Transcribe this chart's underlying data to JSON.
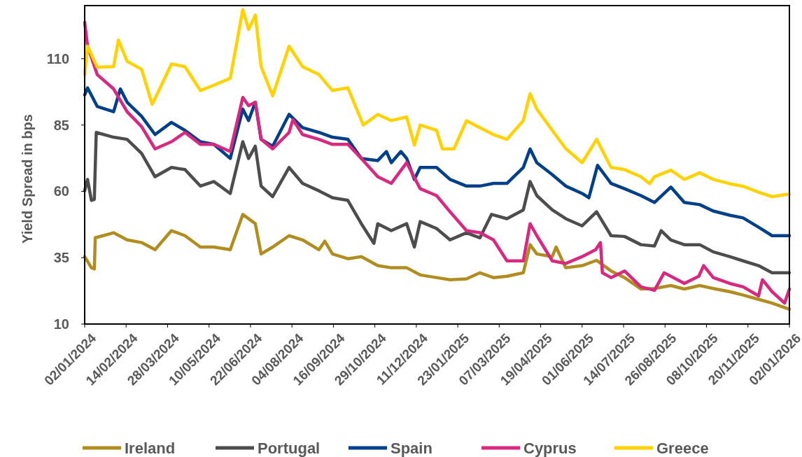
{
  "chart_data": {
    "type": "line",
    "ylabel": "Yield Spread in bps",
    "ylim": [
      10,
      130
    ],
    "yticks": [
      10,
      35,
      60,
      85,
      110
    ],
    "xlim": [
      "2024-01-02",
      "2026-01-02"
    ],
    "xticks": [
      {
        "value": "2024-01-02",
        "label": "02/01/2024"
      },
      {
        "value": "2024-02-14",
        "label": "14/02/2024"
      },
      {
        "value": "2024-03-28",
        "label": "28/03/2024"
      },
      {
        "value": "2024-05-10",
        "label": "10/05/2024"
      },
      {
        "value": "2024-06-22",
        "label": "22/06/2024"
      },
      {
        "value": "2024-08-04",
        "label": "04/08/2024"
      },
      {
        "value": "2024-09-16",
        "label": "16/09/2024"
      },
      {
        "value": "2024-10-29",
        "label": "29/10/2024"
      },
      {
        "value": "2024-12-11",
        "label": "11/12/2024"
      },
      {
        "value": "2025-01-23",
        "label": "23/01/2025"
      },
      {
        "value": "2025-03-07",
        "label": "07/03/2025"
      },
      {
        "value": "2025-04-19",
        "label": "19/04/2025"
      },
      {
        "value": "2025-06-01",
        "label": "01/06/2025"
      },
      {
        "value": "2025-07-14",
        "label": "14/07/2025"
      },
      {
        "value": "2025-08-26",
        "label": "26/08/2025"
      },
      {
        "value": "2025-10-08",
        "label": "08/10/2025"
      },
      {
        "value": "2025-11-20",
        "label": "20/11/2025"
      },
      {
        "value": "2026-01-02",
        "label": "02/01/2026"
      }
    ],
    "grid": false,
    "legend": "bottom",
    "marker": "none",
    "line_style": "solid",
    "series": [
      {
        "name": "Ireland",
        "color": "#b08d1e",
        "x": [
          "2024-01-02",
          "2024-01-09",
          "2024-01-12",
          "2024-01-13",
          "2024-02-01",
          "2024-02-15",
          "2024-03-01",
          "2024-03-15",
          "2024-04-01",
          "2024-04-15",
          "2024-05-01",
          "2024-05-15",
          "2024-06-01",
          "2024-06-14",
          "2024-06-27",
          "2024-07-03",
          "2024-07-15",
          "2024-08-01",
          "2024-08-15",
          "2024-09-01",
          "2024-09-07",
          "2024-09-15",
          "2024-10-01",
          "2024-10-15",
          "2024-11-01",
          "2024-11-15",
          "2024-12-01",
          "2024-12-15",
          "2025-01-01",
          "2025-01-15",
          "2025-02-01",
          "2025-02-15",
          "2025-03-01",
          "2025-03-15",
          "2025-04-01",
          "2025-04-08",
          "2025-04-15",
          "2025-05-01",
          "2025-05-05",
          "2025-05-15",
          "2025-06-01",
          "2025-06-16",
          "2025-07-01",
          "2025-07-15",
          "2025-08-01",
          "2025-08-15",
          "2025-09-01",
          "2025-09-15",
          "2025-10-01",
          "2025-10-15",
          "2025-11-01",
          "2025-11-15",
          "2025-12-01",
          "2025-12-15",
          "2026-01-02"
        ],
        "values": [
          35.4,
          31.2,
          30.8,
          42.5,
          44.4,
          41.7,
          40.7,
          38,
          45.2,
          43.3,
          39,
          39,
          38,
          51.3,
          47.8,
          36.4,
          39,
          43.3,
          41.7,
          38,
          41.2,
          36.4,
          34.6,
          35.4,
          32,
          31.2,
          31.2,
          28.5,
          27.5,
          26.7,
          27,
          29.3,
          27.5,
          28,
          29.3,
          39.9,
          36.4,
          35.4,
          39,
          31.2,
          32,
          34,
          30,
          27.5,
          23.2,
          23.4,
          24.5,
          23.2,
          24.5,
          23.4,
          22.2,
          20.9,
          19.3,
          17.9,
          15.6
        ]
      },
      {
        "name": "Portugal",
        "color": "#4d4d4d",
        "x": [
          "2024-01-02",
          "2024-01-05",
          "2024-01-09",
          "2024-01-12",
          "2024-01-14",
          "2024-02-01",
          "2024-02-15",
          "2024-03-01",
          "2024-03-15",
          "2024-04-01",
          "2024-04-15",
          "2024-05-01",
          "2024-05-15",
          "2024-06-01",
          "2024-06-14",
          "2024-06-20",
          "2024-06-27",
          "2024-07-03",
          "2024-07-15",
          "2024-08-01",
          "2024-08-15",
          "2024-09-01",
          "2024-09-15",
          "2024-10-01",
          "2024-10-15",
          "2024-10-28",
          "2024-11-01",
          "2024-11-15",
          "2024-12-01",
          "2024-12-09",
          "2024-12-15",
          "2025-01-01",
          "2025-01-15",
          "2025-02-01",
          "2025-02-15",
          "2025-02-27",
          "2025-03-15",
          "2025-04-01",
          "2025-04-08",
          "2025-04-15",
          "2025-05-01",
          "2025-05-15",
          "2025-06-01",
          "2025-06-16",
          "2025-07-01",
          "2025-07-15",
          "2025-08-01",
          "2025-08-15",
          "2025-08-22",
          "2025-09-01",
          "2025-09-15",
          "2025-10-01",
          "2025-10-15",
          "2025-11-01",
          "2025-11-15",
          "2025-12-01",
          "2025-12-15",
          "2026-01-02"
        ],
        "values": [
          60.2,
          64.5,
          56.6,
          57,
          82.2,
          80.4,
          79.6,
          74.3,
          65.5,
          69,
          68.2,
          62,
          63.7,
          59.2,
          78.7,
          72.4,
          77,
          62,
          58,
          69,
          63,
          60.2,
          57.6,
          56.6,
          47.8,
          40.4,
          47.8,
          45.2,
          47.8,
          39,
          48.6,
          46,
          41.7,
          44.4,
          42.5,
          51.3,
          49.7,
          53,
          63.7,
          58.4,
          53,
          49.7,
          47,
          52.3,
          43.3,
          43,
          39.9,
          39.4,
          45.2,
          41.7,
          39.9,
          39.9,
          37.2,
          35.4,
          33.8,
          32,
          29.3,
          29.3
        ]
      },
      {
        "name": "Spain",
        "color": "#003f8a",
        "x": [
          "2024-01-02",
          "2024-01-05",
          "2024-01-15",
          "2024-02-01",
          "2024-02-08",
          "2024-02-15",
          "2024-03-01",
          "2024-03-15",
          "2024-04-01",
          "2024-04-15",
          "2024-05-01",
          "2024-05-15",
          "2024-06-01",
          "2024-06-14",
          "2024-06-20",
          "2024-06-27",
          "2024-07-03",
          "2024-07-15",
          "2024-08-01",
          "2024-08-15",
          "2024-09-01",
          "2024-09-15",
          "2024-10-01",
          "2024-10-15",
          "2024-11-01",
          "2024-11-10",
          "2024-11-15",
          "2024-11-25",
          "2024-12-01",
          "2024-12-09",
          "2024-12-15",
          "2025-01-01",
          "2025-01-15",
          "2025-02-01",
          "2025-02-15",
          "2025-03-01",
          "2025-03-15",
          "2025-04-01",
          "2025-04-08",
          "2025-04-15",
          "2025-05-01",
          "2025-05-15",
          "2025-06-01",
          "2025-06-08",
          "2025-06-17",
          "2025-07-01",
          "2025-07-15",
          "2025-08-01",
          "2025-08-15",
          "2025-09-01",
          "2025-09-15",
          "2025-10-01",
          "2025-10-15",
          "2025-11-01",
          "2025-11-15",
          "2025-12-01",
          "2025-12-15",
          "2026-01-02"
        ],
        "values": [
          96.3,
          99,
          92,
          90,
          98.6,
          93.6,
          88.3,
          81.4,
          86,
          83,
          78.7,
          77.7,
          72.4,
          91,
          86.7,
          93.6,
          79.6,
          77,
          89,
          84,
          82.2,
          80.4,
          79.6,
          72.4,
          71.6,
          75,
          70.8,
          75,
          72.4,
          64.5,
          69,
          69,
          64.5,
          62,
          62,
          63,
          63,
          69,
          76,
          70.8,
          66.3,
          62,
          59.2,
          57.6,
          69.8,
          63,
          61,
          58.4,
          55.8,
          61.6,
          55.8,
          55,
          52.6,
          51,
          50,
          46.5,
          43.3,
          43.3
        ]
      },
      {
        "name": "Cyprus",
        "color": "#d9287f",
        "x": [
          "2024-01-02",
          "2024-01-05",
          "2024-01-15",
          "2024-02-01",
          "2024-02-15",
          "2024-03-01",
          "2024-03-15",
          "2024-04-01",
          "2024-04-15",
          "2024-05-01",
          "2024-05-15",
          "2024-06-01",
          "2024-06-14",
          "2024-06-20",
          "2024-06-27",
          "2024-07-03",
          "2024-07-15",
          "2024-08-01",
          "2024-08-05",
          "2024-08-15",
          "2024-09-01",
          "2024-09-15",
          "2024-10-01",
          "2024-10-15",
          "2024-11-01",
          "2024-11-15",
          "2024-12-01",
          "2024-12-15",
          "2025-01-01",
          "2025-01-15",
          "2025-02-01",
          "2025-02-15",
          "2025-03-01",
          "2025-03-15",
          "2025-04-01",
          "2025-04-08",
          "2025-04-15",
          "2025-05-01",
          "2025-05-15",
          "2025-06-01",
          "2025-06-15",
          "2025-06-20",
          "2025-06-22",
          "2025-07-01",
          "2025-07-15",
          "2025-08-01",
          "2025-08-15",
          "2025-08-25",
          "2025-09-01",
          "2025-09-15",
          "2025-09-30",
          "2025-10-05",
          "2025-10-15",
          "2025-11-01",
          "2025-11-15",
          "2025-12-01",
          "2025-12-05",
          "2025-12-15",
          "2025-12-28",
          "2026-01-02"
        ],
        "values": [
          123.7,
          114.7,
          104,
          98.6,
          90,
          84.4,
          76,
          78.7,
          82.2,
          77.7,
          77.7,
          75,
          95.4,
          92.3,
          93.6,
          79.6,
          76,
          82.2,
          87,
          81.4,
          79.6,
          77.7,
          77.7,
          72.4,
          65.5,
          63,
          70.8,
          61,
          58.4,
          52.3,
          45.2,
          44.4,
          41.7,
          33.8,
          33.8,
          47.8,
          43.3,
          33.8,
          32.8,
          35.4,
          38,
          40.7,
          29.3,
          27.5,
          30,
          24,
          22.7,
          29.3,
          28,
          25.3,
          28,
          32,
          27.5,
          25.3,
          24,
          20.6,
          26.7,
          22.2,
          17.9,
          23.2
        ]
      },
      {
        "name": "Greece",
        "color": "#ffd200",
        "x": [
          "2024-01-02",
          "2024-01-05",
          "2024-01-15",
          "2024-02-01",
          "2024-02-06",
          "2024-02-15",
          "2024-03-01",
          "2024-03-12",
          "2024-03-15",
          "2024-04-01",
          "2024-04-15",
          "2024-05-01",
          "2024-05-15",
          "2024-06-01",
          "2024-06-14",
          "2024-06-20",
          "2024-06-27",
          "2024-07-03",
          "2024-07-15",
          "2024-08-01",
          "2024-08-15",
          "2024-09-01",
          "2024-09-15",
          "2024-10-01",
          "2024-10-17",
          "2024-11-01",
          "2024-11-15",
          "2024-12-01",
          "2024-12-09",
          "2024-12-15",
          "2025-01-01",
          "2025-01-07",
          "2025-01-19",
          "2025-02-01",
          "2025-02-15",
          "2025-03-01",
          "2025-03-15",
          "2025-04-01",
          "2025-04-08",
          "2025-04-15",
          "2025-05-01",
          "2025-05-15",
          "2025-06-01",
          "2025-06-16",
          "2025-07-01",
          "2025-07-15",
          "2025-08-01",
          "2025-08-10",
          "2025-08-15",
          "2025-09-01",
          "2025-09-15",
          "2025-10-01",
          "2025-10-15",
          "2025-11-01",
          "2025-11-15",
          "2025-12-01",
          "2025-12-15",
          "2026-01-02"
        ],
        "values": [
          104,
          114.7,
          106.8,
          107,
          117,
          109,
          106,
          92.8,
          95,
          108,
          107,
          98,
          100,
          102.6,
          128.5,
          121,
          126.4,
          107,
          96,
          114.7,
          107,
          104,
          98,
          99,
          85,
          89,
          86.7,
          88,
          77.4,
          85,
          83,
          76,
          76,
          86.6,
          84,
          81.4,
          79.6,
          86.7,
          96.8,
          91,
          83,
          76.1,
          70.8,
          79.6,
          69,
          68.2,
          65.5,
          62.9,
          65.5,
          68,
          64.5,
          67,
          64.5,
          62.9,
          61.9,
          59.7,
          58,
          59
        ]
      }
    ]
  }
}
